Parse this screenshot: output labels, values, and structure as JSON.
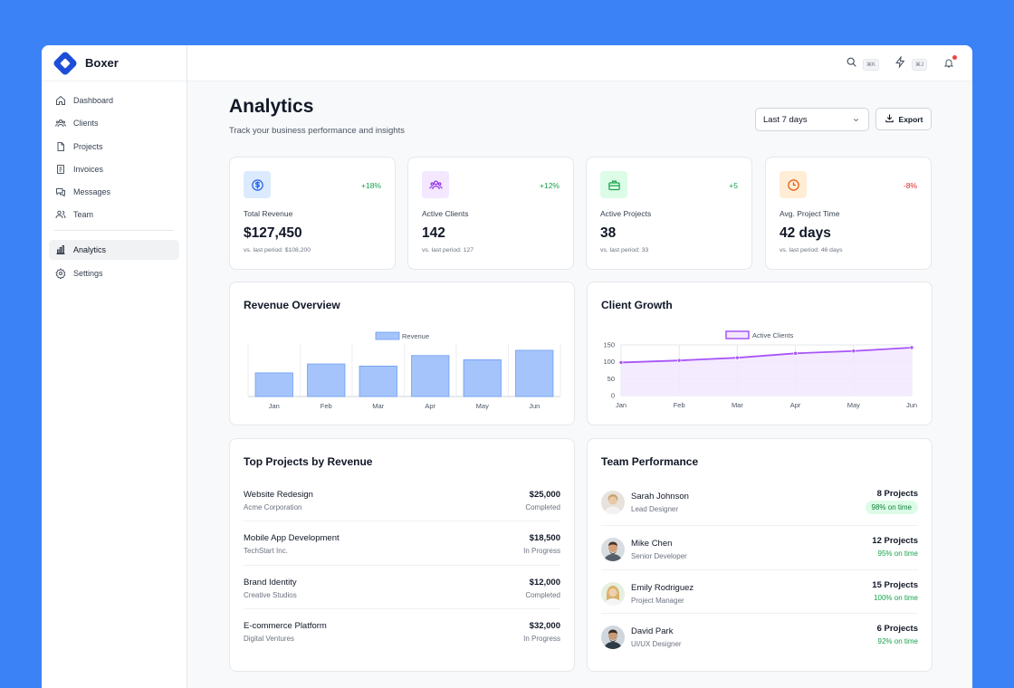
{
  "app": {
    "name": "Boxer"
  },
  "sidebar": {
    "items": [
      {
        "label": "Dashboard",
        "icon": "home-icon"
      },
      {
        "label": "Clients",
        "icon": "users-icon"
      },
      {
        "label": "Projects",
        "icon": "file-icon"
      },
      {
        "label": "Invoices",
        "icon": "invoice-icon"
      },
      {
        "label": "Messages",
        "icon": "message-icon"
      },
      {
        "label": "Team",
        "icon": "team-icon"
      }
    ],
    "secondary": [
      {
        "label": "Analytics",
        "icon": "bar-chart-icon",
        "active": true
      },
      {
        "label": "Settings",
        "icon": "gear-icon"
      }
    ]
  },
  "topbar": {
    "search_shortcut": "⌘K",
    "command_shortcut": "⌘J"
  },
  "header": {
    "title": "Analytics",
    "subtitle": "Track your business performance and insights",
    "range_select": "Last 7 days",
    "export_label": "Export"
  },
  "stats": [
    {
      "label": "Total Revenue",
      "value": "$127,450",
      "change": "+18%",
      "prev": "vs. last period: $108,200",
      "icon": "dollar-icon"
    },
    {
      "label": "Active Clients",
      "value": "142",
      "change": "+12%",
      "prev": "vs. last period: 127",
      "icon": "users-icon"
    },
    {
      "label": "Active Projects",
      "value": "38",
      "change": "+5",
      "prev": "vs. last period: 33",
      "icon": "briefcase-icon"
    },
    {
      "label": "Avg. Project Time",
      "value": "42 days",
      "change": "-8%",
      "prev": "vs. last period: 46 days",
      "icon": "clock-icon"
    }
  ],
  "colors": {
    "accent": "#3b82f6",
    "positive": "#16a34a",
    "negative": "#dc2626",
    "revenue_bar": "#a5c4fb",
    "client_line": "#a855f7"
  },
  "revenue_chart": {
    "title": "Revenue Overview"
  },
  "client_chart": {
    "title": "Client Growth"
  },
  "chart_data": [
    {
      "type": "bar",
      "title": "Revenue Overview",
      "categories": [
        "Jan",
        "Feb",
        "Mar",
        "Apr",
        "May",
        "Jun"
      ],
      "series": [
        {
          "name": "Revenue",
          "values": [
            45,
            62,
            58,
            78,
            70,
            88
          ]
        }
      ],
      "ylim": [
        0,
        100
      ],
      "grid": true,
      "legend": "top-center"
    },
    {
      "type": "area",
      "title": "Client Growth",
      "categories": [
        "Jan",
        "Feb",
        "Mar",
        "Apr",
        "May",
        "Jun"
      ],
      "series": [
        {
          "name": "Active Clients",
          "values": [
            98,
            104,
            112,
            125,
            132,
            142
          ]
        }
      ],
      "ylim": [
        0,
        150
      ],
      "yticks": [
        "0",
        "50",
        "100",
        "150"
      ],
      "grid": true,
      "legend": "top-center"
    }
  ],
  "top_projects": {
    "title": "Top Projects by Revenue",
    "rows": [
      {
        "name": "Website Redesign",
        "client": "Acme Corporation",
        "amount": "$25,000",
        "status": "Completed"
      },
      {
        "name": "Mobile App Development",
        "client": "TechStart Inc.",
        "amount": "$18,500",
        "status": "In Progress"
      },
      {
        "name": "Brand Identity",
        "client": "Creative Studios",
        "amount": "$12,000",
        "status": "Completed"
      },
      {
        "name": "E-commerce Platform",
        "client": "Digital Ventures",
        "amount": "$32,000",
        "status": "In Progress"
      }
    ]
  },
  "team": {
    "title": "Team Performance",
    "rows": [
      {
        "name": "Sarah Johnson",
        "role": "Lead Designer",
        "projects": "8 Projects",
        "on_time": "98% on time"
      },
      {
        "name": "Mike Chen",
        "role": "Senior Developer",
        "projects": "12 Projects",
        "on_time": "95% on time"
      },
      {
        "name": "Emily Rodriguez",
        "role": "Project Manager",
        "projects": "15 Projects",
        "on_time": "100% on time"
      },
      {
        "name": "David Park",
        "role": "UI/UX Designer",
        "projects": "6 Projects",
        "on_time": "92% on time"
      }
    ]
  }
}
